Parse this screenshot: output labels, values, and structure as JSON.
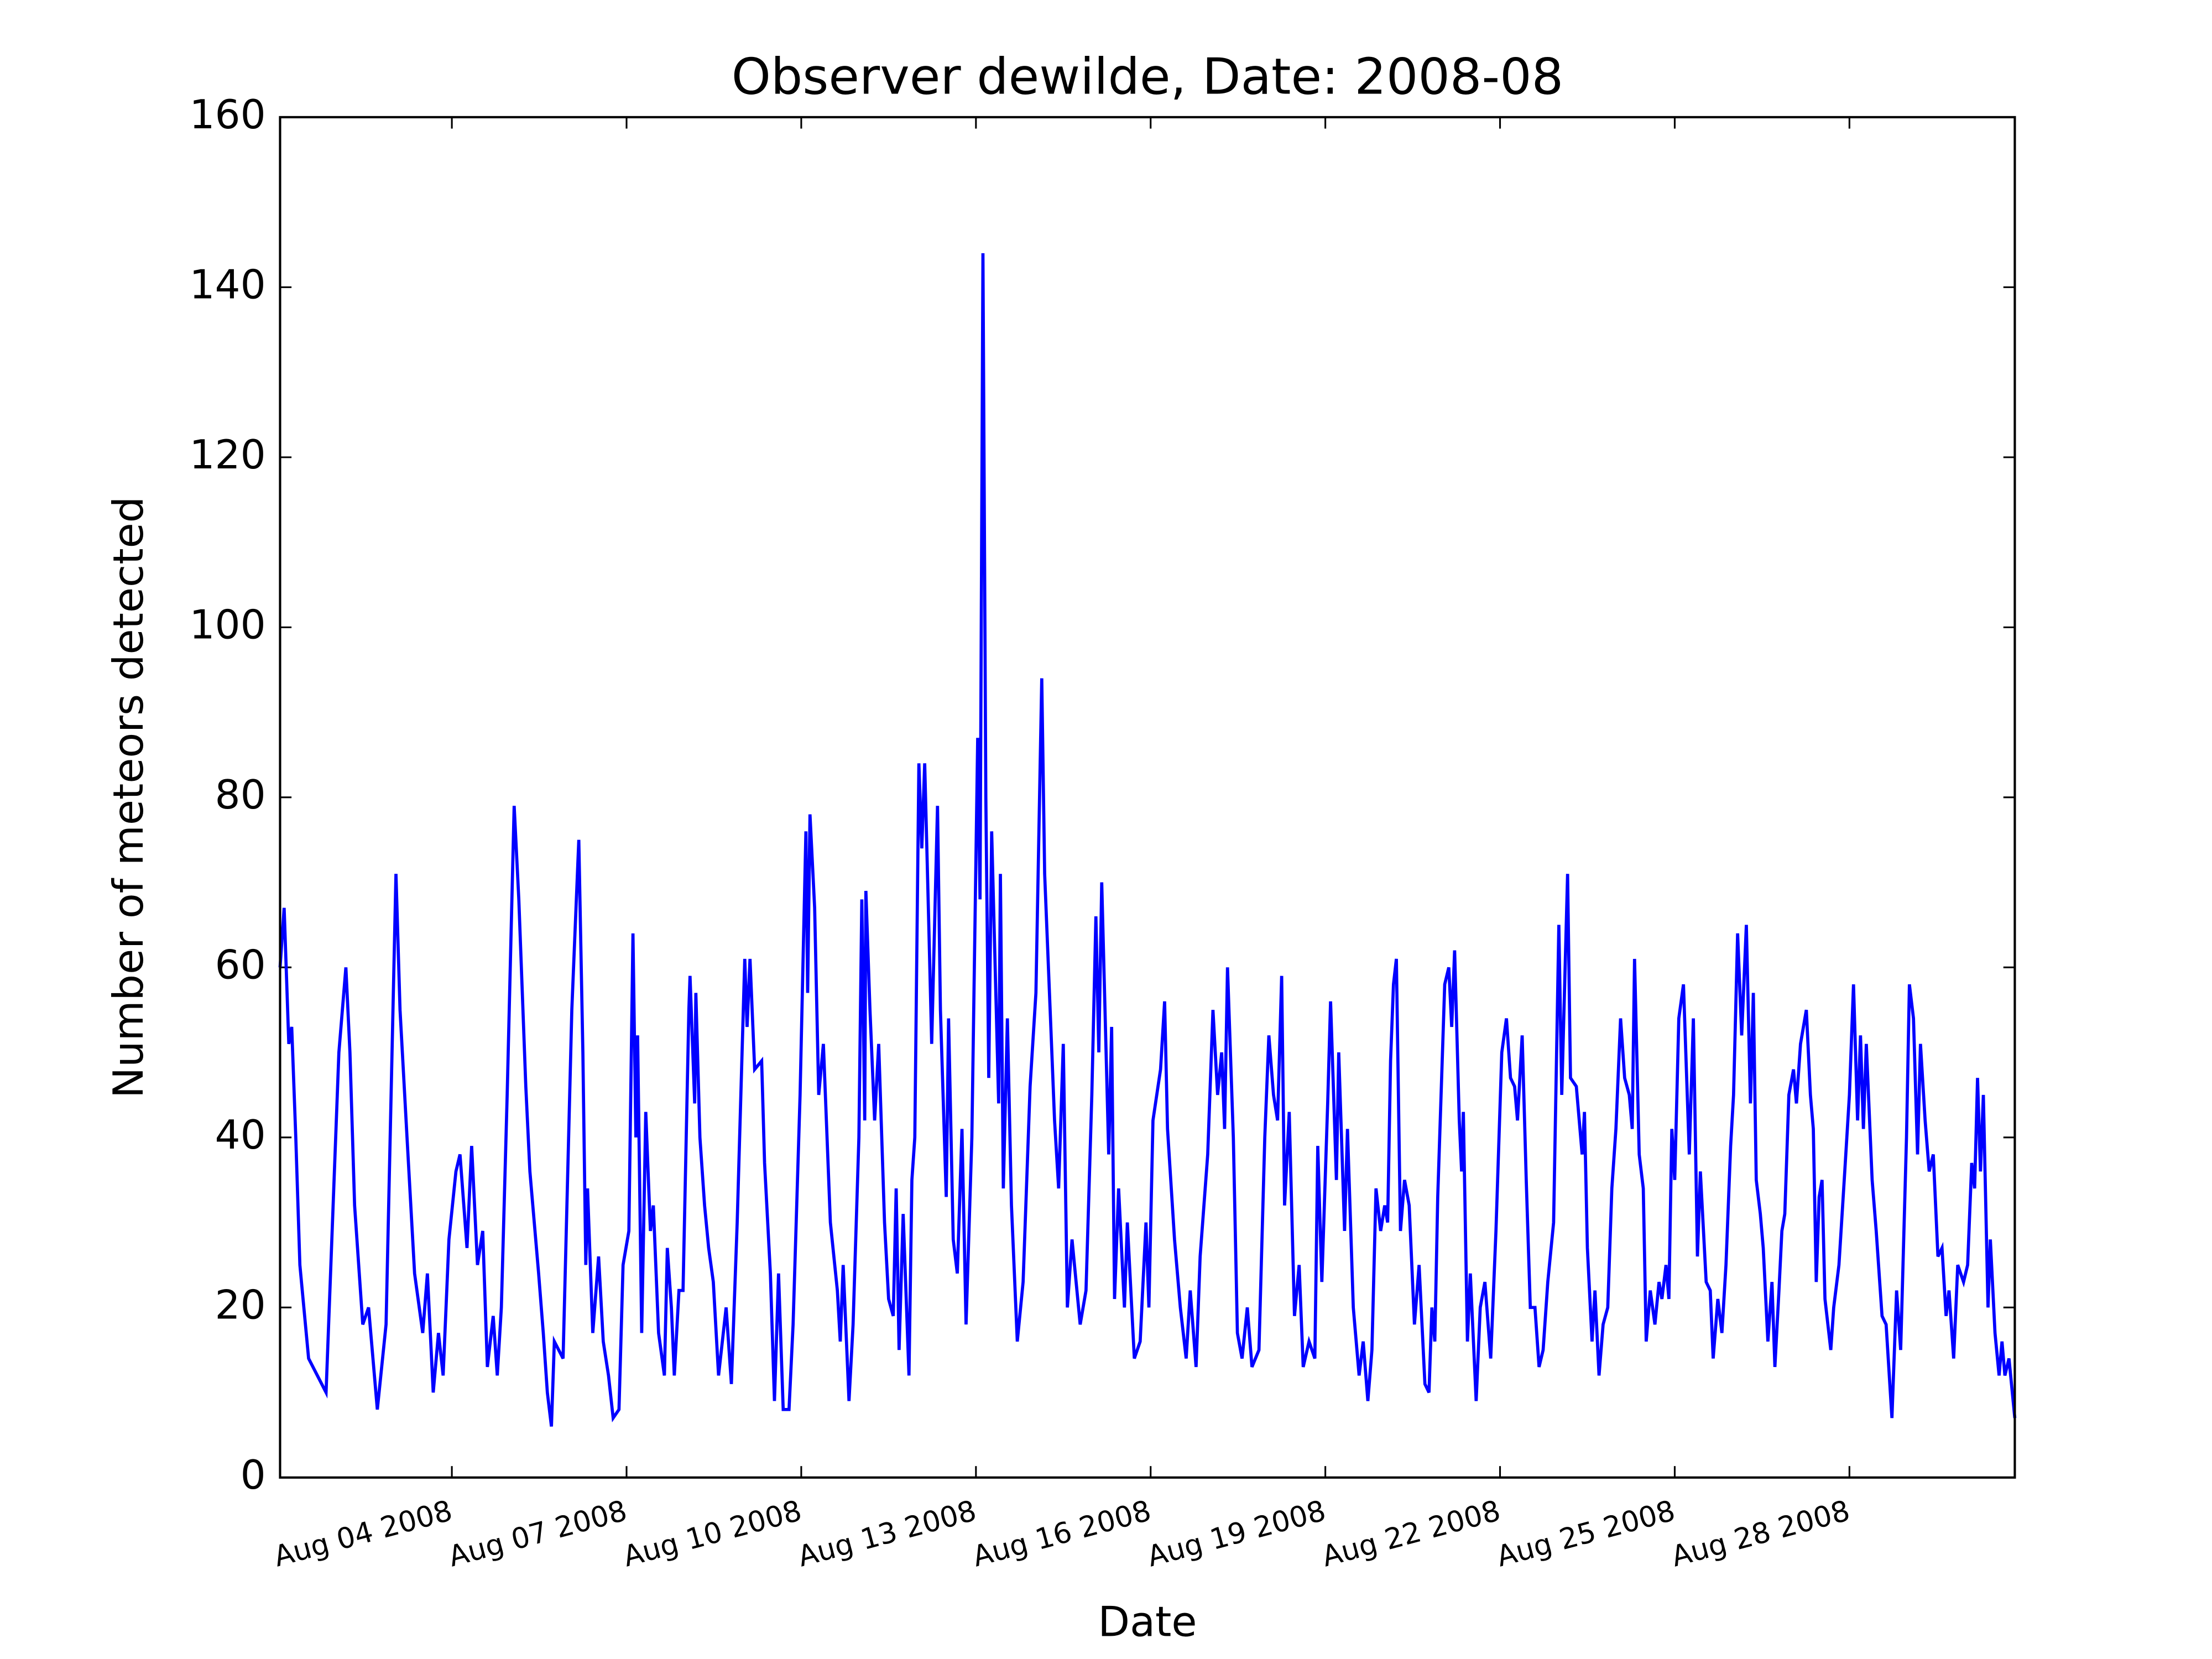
{
  "chart_data": {
    "type": "line",
    "title": "Observer dewilde, Date: 2008-08",
    "x_label": "Date",
    "y_label": "Number of meteors detected",
    "color": "#0000ff",
    "xlim": [
      1.05,
      30.84
    ],
    "ylim": [
      0,
      160
    ],
    "xticks": [
      {
        "value": 4,
        "label": "Aug 04 2008"
      },
      {
        "value": 7,
        "label": "Aug 07 2008"
      },
      {
        "value": 10,
        "label": "Aug 10 2008"
      },
      {
        "value": 13,
        "label": "Aug 13 2008"
      },
      {
        "value": 16,
        "label": "Aug 16 2008"
      },
      {
        "value": 19,
        "label": "Aug 19 2008"
      },
      {
        "value": 22,
        "label": "Aug 22 2008"
      },
      {
        "value": 25,
        "label": "Aug 25 2008"
      },
      {
        "value": 28,
        "label": "Aug 28 2008"
      }
    ],
    "yticks": [
      0,
      20,
      40,
      60,
      80,
      100,
      120,
      140,
      160
    ],
    "x": [
      1.05,
      1.12,
      1.2,
      1.25,
      1.32,
      1.39,
      1.54,
      1.69,
      1.84,
      2.06,
      2.18,
      2.25,
      2.33,
      2.47,
      2.57,
      2.72,
      2.87,
      3.04,
      3.11,
      3.23,
      3.36,
      3.5,
      3.58,
      3.68,
      3.77,
      3.85,
      3.95,
      4.07,
      4.14,
      4.26,
      4.34,
      4.44,
      4.53,
      4.61,
      4.71,
      4.78,
      4.85,
      4.95,
      5.07,
      5.15,
      5.27,
      5.34,
      5.49,
      5.57,
      5.64,
      5.71,
      5.76,
      5.91,
      6.06,
      6.18,
      6.25,
      6.3,
      6.33,
      6.42,
      6.52,
      6.6,
      6.69,
      6.77,
      6.87,
      6.94,
      7.04,
      7.11,
      7.16,
      7.19,
      7.26,
      7.33,
      7.41,
      7.46,
      7.55,
      7.65,
      7.7,
      7.77,
      7.82,
      7.9,
      7.97,
      8.07,
      8.09,
      8.17,
      8.19,
      8.26,
      8.34,
      8.41,
      8.49,
      8.58,
      8.71,
      8.8,
      8.9,
      9.03,
      9.07,
      9.12,
      9.2,
      9.32,
      9.37,
      9.47,
      9.54,
      9.61,
      9.69,
      9.79,
      9.86,
      9.98,
      10.08,
      10.11,
      10.15,
      10.23,
      10.3,
      10.38,
      10.5,
      10.62,
      10.67,
      10.72,
      10.82,
      10.89,
      10.99,
      11.04,
      11.09,
      11.11,
      11.18,
      11.26,
      11.33,
      11.43,
      11.5,
      11.58,
      11.63,
      11.68,
      11.75,
      11.85,
      11.9,
      11.95,
      12.02,
      12.07,
      12.12,
      12.19,
      12.24,
      12.34,
      12.39,
      12.49,
      12.53,
      12.61,
      12.68,
      12.76,
      12.83,
      12.93,
      13.03,
      13.07,
      13.12,
      13.17,
      13.22,
      13.27,
      13.39,
      13.42,
      13.47,
      13.54,
      13.61,
      13.71,
      13.81,
      13.93,
      14.03,
      14.13,
      14.18,
      14.28,
      14.35,
      14.42,
      14.5,
      14.57,
      14.65,
      14.79,
      14.89,
      14.99,
      15.06,
      15.11,
      15.16,
      15.28,
      15.33,
      15.38,
      15.45,
      15.55,
      15.6,
      15.72,
      15.82,
      15.92,
      15.97,
      16.04,
      16.17,
      16.24,
      16.29,
      16.41,
      16.51,
      16.61,
      16.68,
      16.78,
      16.85,
      16.98,
      17.07,
      17.15,
      17.22,
      17.27,
      17.32,
      17.42,
      17.49,
      17.57,
      17.66,
      17.74,
      17.86,
      17.96,
      18.03,
      18.11,
      18.18,
      18.25,
      18.3,
      18.38,
      18.47,
      18.55,
      18.62,
      18.72,
      18.82,
      18.87,
      18.94,
      19.04,
      19.09,
      19.19,
      19.23,
      19.33,
      19.38,
      19.48,
      19.58,
      19.65,
      19.73,
      19.8,
      19.87,
      19.95,
      20.02,
      20.07,
      20.12,
      20.17,
      20.22,
      20.29,
      20.36,
      20.44,
      20.53,
      20.61,
      20.71,
      20.78,
      20.83,
      20.88,
      20.93,
      21.05,
      21.12,
      21.17,
      21.22,
      21.3,
      21.34,
      21.37,
      21.44,
      21.49,
      21.59,
      21.66,
      21.74,
      21.84,
      21.93,
      22.03,
      22.11,
      22.18,
      22.25,
      22.3,
      22.38,
      22.45,
      22.52,
      22.6,
      22.67,
      22.74,
      22.82,
      22.92,
      23.01,
      23.06,
      23.16,
      23.21,
      23.31,
      23.41,
      23.45,
      23.5,
      23.58,
      23.63,
      23.7,
      23.77,
      23.85,
      23.92,
      23.99,
      24.07,
      24.14,
      24.22,
      24.27,
      24.31,
      24.39,
      24.46,
      24.51,
      24.58,
      24.66,
      24.73,
      24.78,
      24.85,
      24.9,
      24.95,
      25.0,
      25.07,
      25.15,
      25.25,
      25.32,
      25.39,
      25.44,
      25.54,
      25.61,
      25.66,
      25.74,
      25.81,
      25.88,
      25.96,
      26.01,
      26.08,
      26.15,
      26.23,
      26.3,
      26.35,
      26.4,
      26.47,
      26.52,
      26.6,
      26.67,
      26.72,
      26.79,
      26.84,
      26.89,
      26.96,
      27.04,
      27.09,
      27.16,
      27.26,
      27.33,
      27.38,
      27.43,
      27.48,
      27.53,
      27.58,
      27.68,
      27.73,
      27.82,
      27.92,
      28.0,
      28.07,
      28.14,
      28.19,
      28.24,
      28.29,
      28.39,
      28.46,
      28.56,
      28.63,
      28.73,
      28.81,
      28.88,
      28.98,
      29.03,
      29.1,
      29.17,
      29.22,
      29.3,
      29.37,
      29.44,
      29.52,
      29.59,
      29.66,
      29.71,
      29.79,
      29.86,
      29.96,
      30.03,
      30.1,
      30.15,
      30.2,
      30.25,
      30.3,
      30.38,
      30.42,
      30.5,
      30.57,
      30.62,
      30.67,
      30.74,
      30.84
    ],
    "values": [
      60,
      67,
      51,
      53,
      40,
      25,
      14,
      12,
      10,
      50,
      60,
      50,
      32,
      18,
      20,
      8,
      18,
      71,
      55,
      40,
      24,
      17,
      24,
      10,
      17,
      12,
      28,
      36,
      38,
      27,
      39,
      25,
      29,
      13,
      19,
      12,
      20,
      45,
      79,
      68,
      46,
      36,
      24,
      17,
      10,
      6,
      16,
      14,
      55,
      75,
      50,
      25,
      34,
      17,
      26,
      16,
      12,
      7,
      8,
      25,
      29,
      64,
      40,
      52,
      17,
      43,
      29,
      32,
      17,
      12,
      27,
      20,
      12,
      22,
      22,
      55,
      59,
      44,
      57,
      40,
      32,
      27,
      23,
      12,
      20,
      11,
      30,
      61,
      53,
      61,
      48,
      49,
      37,
      24,
      9,
      24,
      8,
      8,
      18,
      45,
      76,
      57,
      78,
      67,
      45,
      51,
      30,
      22,
      16,
      25,
      9,
      18,
      40,
      68,
      42,
      69,
      55,
      42,
      51,
      30,
      21,
      19,
      34,
      15,
      31,
      12,
      35,
      40,
      84,
      74,
      84,
      65,
      51,
      79,
      55,
      33,
      54,
      28,
      24,
      41,
      18,
      40,
      87,
      68,
      144,
      80,
      47,
      76,
      44,
      71,
      34,
      54,
      32,
      16,
      23,
      46,
      57,
      94,
      71,
      54,
      42,
      34,
      51,
      20,
      28,
      18,
      22,
      45,
      66,
      50,
      70,
      38,
      53,
      21,
      34,
      20,
      30,
      14,
      16,
      30,
      20,
      42,
      48,
      56,
      41,
      28,
      20,
      14,
      22,
      13,
      26,
      38,
      55,
      45,
      50,
      41,
      60,
      40,
      17,
      14,
      20,
      13,
      15,
      40,
      52,
      45,
      42,
      59,
      32,
      43,
      19,
      25,
      13,
      16,
      14,
      39,
      23,
      44,
      56,
      35,
      50,
      29,
      41,
      20,
      12,
      16,
      9,
      15,
      34,
      29,
      32,
      30,
      49,
      58,
      61,
      29,
      35,
      32,
      18,
      25,
      11,
      10,
      20,
      16,
      33,
      58,
      60,
      53,
      62,
      42,
      36,
      43,
      16,
      24,
      9,
      20,
      23,
      14,
      29,
      50,
      54,
      47,
      46,
      42,
      52,
      35,
      20,
      20,
      13,
      15,
      23,
      30,
      65,
      45,
      71,
      47,
      46,
      38,
      43,
      27,
      16,
      22,
      12,
      18,
      20,
      34,
      41,
      54,
      47,
      45,
      41,
      61,
      38,
      34,
      16,
      22,
      18,
      23,
      21,
      25,
      21,
      41,
      35,
      54,
      58,
      38,
      54,
      26,
      36,
      23,
      22,
      14,
      21,
      17,
      25,
      39,
      45,
      64,
      52,
      65,
      44,
      57,
      35,
      31,
      27,
      16,
      23,
      13,
      22,
      29,
      31,
      45,
      48,
      44,
      51,
      55,
      45,
      41,
      23,
      33,
      35,
      21,
      15,
      20,
      25,
      36,
      45,
      58,
      42,
      52,
      41,
      51,
      35,
      29,
      19,
      18,
      7,
      22,
      15,
      40,
      58,
      54,
      38,
      51,
      42,
      36,
      38,
      26,
      27,
      19,
      22,
      14,
      25,
      23,
      25,
      37,
      34,
      47,
      36,
      45,
      20,
      28,
      17,
      12,
      16,
      12,
      14,
      7
    ]
  }
}
